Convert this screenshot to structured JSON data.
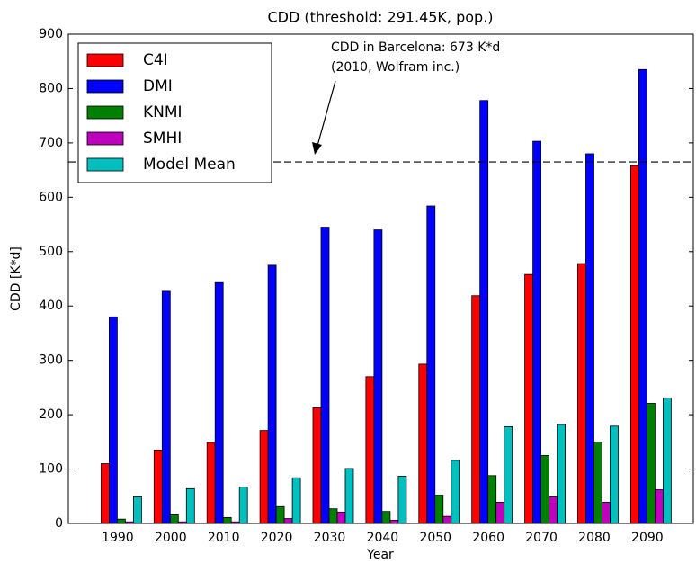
{
  "chart_data": {
    "type": "bar",
    "title": "CDD (threshold: 291.45K, pop.)",
    "xlabel": "Year",
    "ylabel": "CDD [K*d]",
    "categories": [
      "1990",
      "2000",
      "2010",
      "2020",
      "2030",
      "2040",
      "2050",
      "2060",
      "2070",
      "2080",
      "2090"
    ],
    "series": [
      {
        "name": "C4I",
        "color": "#ff0000",
        "values": [
          110,
          135,
          149,
          171,
          213,
          270,
          293,
          419,
          458,
          478,
          658
        ]
      },
      {
        "name": "DMI",
        "color": "#0000ff",
        "values": [
          380,
          427,
          443,
          475,
          545,
          540,
          584,
          778,
          703,
          680,
          835
        ]
      },
      {
        "name": "KNMI",
        "color": "#008000",
        "values": [
          8,
          16,
          11,
          31,
          27,
          22,
          52,
          88,
          125,
          150,
          221
        ]
      },
      {
        "name": "SMHI",
        "color": "#bf00bf",
        "values": [
          3,
          3,
          3,
          9,
          21,
          6,
          13,
          39,
          49,
          39,
          62
        ]
      },
      {
        "name": "Model Mean",
        "color": "#00bfbf",
        "values": [
          49,
          64,
          67,
          84,
          101,
          87,
          116,
          178,
          182,
          179,
          231
        ]
      }
    ],
    "ylim": [
      0,
      900
    ],
    "yticks": [
      0,
      100,
      200,
      300,
      400,
      500,
      600,
      700,
      800,
      900
    ],
    "reference_line": 665,
    "annotation": [
      "CDD in Barcelona: 673 K*d",
      "(2010, Wolfram inc.)"
    ],
    "legend": "upper left"
  }
}
